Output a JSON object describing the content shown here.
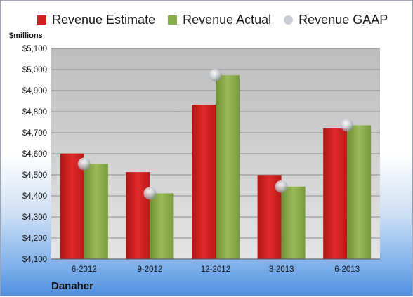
{
  "legend": [
    {
      "label": "Revenue Estimate",
      "color": "#d21f1f",
      "marker": "square"
    },
    {
      "label": "Revenue Actual",
      "color": "#8aab4a",
      "marker": "square"
    },
    {
      "label": "Revenue GAAP",
      "color": "#c9ccd2",
      "marker": "circle"
    }
  ],
  "unit_label": "$millions",
  "company": "Danaher",
  "chart_data": {
    "type": "bar",
    "categories": [
      "6-2012",
      "9-2012",
      "12-2012",
      "3-2013",
      "6-2013"
    ],
    "series": [
      {
        "name": "Revenue Estimate",
        "type": "bar",
        "color": "#d21f1f",
        "values": [
          4601,
          4513,
          4833,
          4499,
          4720
        ]
      },
      {
        "name": "Revenue Actual",
        "type": "bar",
        "color": "#8aab4a",
        "values": [
          4552,
          4412,
          4973,
          4444,
          4735
        ]
      },
      {
        "name": "Revenue GAAP",
        "type": "scatter",
        "color": "#c9ccd2",
        "values": [
          4552,
          4412,
          4973,
          4444,
          4735
        ]
      }
    ],
    "ylim": [
      4100,
      5100
    ],
    "yticks": [
      "$4,100",
      "$4,200",
      "$4,300",
      "$4,400",
      "$4,500",
      "$4,600",
      "$4,700",
      "$4,800",
      "$4,900",
      "$5,000",
      "$5,100"
    ],
    "grid": true,
    "legend_position": "top"
  }
}
